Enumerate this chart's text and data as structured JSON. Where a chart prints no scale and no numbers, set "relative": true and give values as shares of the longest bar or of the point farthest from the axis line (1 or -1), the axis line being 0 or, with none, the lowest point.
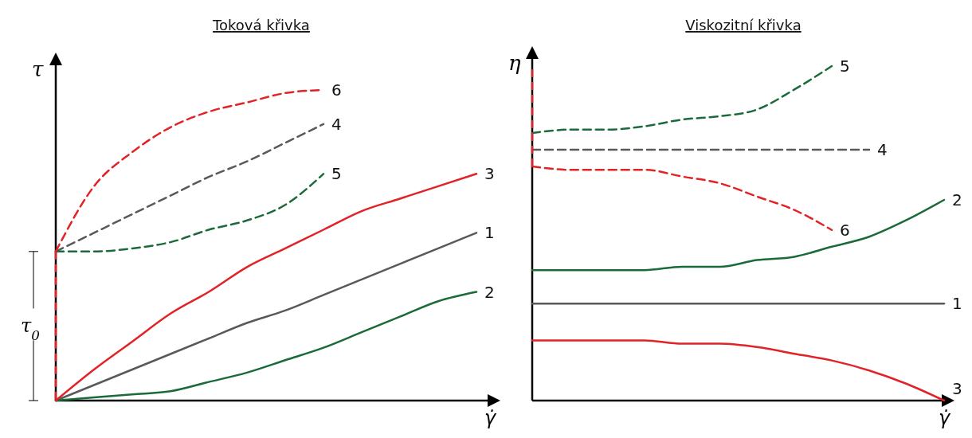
{
  "chart_data": [
    {
      "type": "line",
      "title": "Toková křivka",
      "xlabel": "γ̇",
      "ylabel": "τ",
      "relative": true,
      "marker": "none",
      "categories": [
        null,
        null,
        null,
        null,
        null,
        null,
        null,
        null,
        null,
        null,
        null,
        null
      ],
      "annotations": [
        "τ$_{0}$"
      ],
      "series": [
        {
          "name": "1",
          "color": "#595959",
          "line_style": "solid",
          "values": [
            0,
            0.05,
            0.1,
            0.15,
            0.2,
            0.25,
            0.29,
            0.34,
            0.39,
            0.44,
            0.49,
            0.54
          ]
        },
        {
          "name": "2",
          "color": "#1b6b3a",
          "line_style": "solid",
          "values": [
            0,
            0.01,
            0.02,
            0.03,
            0.06,
            0.09,
            0.13,
            0.17,
            0.22,
            0.27,
            0.32,
            0.35
          ]
        },
        {
          "name": "3",
          "color": "#e32227",
          "line_style": "solid",
          "values": [
            0,
            0.1,
            0.19,
            0.28,
            0.35,
            0.43,
            0.49,
            0.55,
            0.61,
            0.65,
            0.69,
            0.73
          ]
        },
        {
          "name": "4",
          "color": "#595959",
          "line_style": "dashed",
          "values": [
            0.48,
            0.54,
            0.6,
            0.66,
            0.72,
            0.77,
            0.83,
            0.89,
            null,
            null,
            null,
            null
          ]
        },
        {
          "name": "5",
          "color": "#1b6b3a",
          "line_style": "dashed",
          "values": [
            0.48,
            0.48,
            0.49,
            0.51,
            0.55,
            0.58,
            0.63,
            0.73,
            null,
            null,
            null,
            null
          ]
        },
        {
          "name": "6",
          "color": "#e32227",
          "line_style": "dashed",
          "values": [
            0.48,
            0.69,
            0.8,
            0.88,
            0.93,
            0.96,
            0.99,
            1.0,
            null,
            null,
            null,
            null
          ]
        }
      ]
    },
    {
      "type": "line",
      "title": "Viskozitní křivka",
      "xlabel": "γ̇",
      "ylabel": "η",
      "relative": true,
      "marker": "none",
      "categories": [
        null,
        null,
        null,
        null,
        null,
        null,
        null,
        null,
        null,
        null,
        null,
        null
      ],
      "series": [
        {
          "name": "1",
          "color": "#595959",
          "line_style": "solid",
          "values": [
            0.29,
            0.29,
            0.29,
            0.29,
            0.29,
            0.29,
            0.29,
            0.29,
            0.29,
            0.29,
            0.29,
            0.29
          ]
        },
        {
          "name": "2",
          "color": "#1b6b3a",
          "line_style": "solid",
          "values": [
            0.39,
            0.39,
            0.39,
            0.39,
            0.4,
            0.4,
            0.42,
            0.43,
            0.46,
            0.49,
            0.54,
            0.6
          ]
        },
        {
          "name": "3",
          "color": "#e32227",
          "line_style": "solid",
          "values": [
            0.18,
            0.18,
            0.18,
            0.18,
            0.17,
            0.17,
            0.16,
            0.14,
            0.12,
            0.09,
            0.05,
            0
          ]
        },
        {
          "name": "4",
          "color": "#595959",
          "line_style": "dashed",
          "values": [
            0.75,
            0.75,
            0.75,
            0.75,
            0.75,
            0.75,
            0.75,
            0.75,
            0.75,
            0.75,
            null,
            null
          ]
        },
        {
          "name": "5",
          "color": "#1b6b3a",
          "line_style": "dashed",
          "values": [
            0.8,
            0.81,
            0.81,
            0.82,
            0.84,
            0.85,
            0.87,
            0.93,
            1.0,
            null,
            null,
            null
          ]
        },
        {
          "name": "6",
          "color": "#e32227",
          "line_style": "dashed",
          "values": [
            0.7,
            0.69,
            0.69,
            0.69,
            0.67,
            0.65,
            0.61,
            0.57,
            0.51,
            null,
            null,
            null
          ]
        }
      ]
    }
  ]
}
